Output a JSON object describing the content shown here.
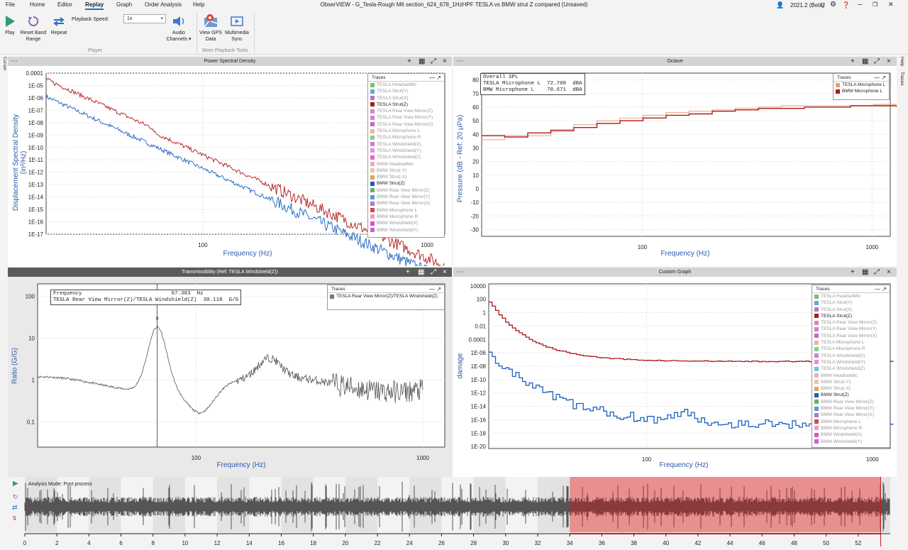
{
  "menu": [
    "File",
    "Home",
    "Editor",
    "Replay",
    "Graph",
    "Order Analysis",
    "Help"
  ],
  "window_title": "ObserVIEW - G_Tesla-Rough M6 section_624_678_1HzHPF TESLA vs BMW strut Z compared (Unsaved)",
  "version": "2021.2 (Beta)",
  "ribbon": {
    "play": "Play",
    "reset_band_range": [
      "Reset Band",
      "Range"
    ],
    "repeat": "Repeat",
    "playback_speed_label": "Playback Speed:",
    "playback_speed": "1x",
    "audio_channels": [
      "Audio",
      "Channels ▾"
    ],
    "view_gps": [
      "View GPS",
      "Data"
    ],
    "multimedia_sync": [
      "Multimedia",
      "Sync"
    ],
    "group_player": "Player",
    "group_more": "More Playback Tools"
  },
  "side_left": "Cursor",
  "side_right": [
    "Help",
    "Traces"
  ],
  "legend_title": "Traces",
  "psd": {
    "title": "Power Spectral Density",
    "ylabel": "Displacement Spectral Density (in²/Hz)",
    "xlabel": "Frequency (Hz)",
    "yticks": [
      "0.0001",
      "1E-05",
      "1E-06",
      "1E-07",
      "1E-08",
      "1E-09",
      "1E-10",
      "1E-11",
      "1E-12",
      "1E-13",
      "1E-14",
      "1E-15",
      "1E-16",
      "1E-17"
    ],
    "xticks": [
      "100",
      "1000"
    ],
    "traces": [
      {
        "name": "TESLA HeadsetMic",
        "color": "#7bbf6a"
      },
      {
        "name": "TESLA Strut(Y)",
        "color": "#6aa6d6"
      },
      {
        "name": "TESLA Strut(X)",
        "color": "#b07ac6"
      },
      {
        "name": "TESLA Strut(Z)",
        "color": "#b01818",
        "on": true
      },
      {
        "name": "TESLA Rear View Mirror(Z)",
        "color": "#d98ab0"
      },
      {
        "name": "TESLA Rear View Mirror(Y)",
        "color": "#e07ad8"
      },
      {
        "name": "TESLA Rear View Mirror(X)",
        "color": "#c06ac0"
      },
      {
        "name": "TESLA Microphone L",
        "color": "#e8b89a"
      },
      {
        "name": "TESLA Microphone R",
        "color": "#8ad08a"
      },
      {
        "name": "TESLA Windshield(X)",
        "color": "#d47ad4"
      },
      {
        "name": "TESLA Windshield(Y)",
        "color": "#f08ad8"
      },
      {
        "name": "TESLA Windshield(Z)",
        "color": "#e86ab8"
      },
      {
        "name": "BMW HeadsetMic",
        "color": "#f0a8c8"
      },
      {
        "name": "BMW Strut(-Y)",
        "color": "#e8c8a0"
      },
      {
        "name": "BMW Strut(-X)",
        "color": "#d4a860"
      },
      {
        "name": "BMW Strut(Z)",
        "color": "#1a5fc0",
        "on": true
      },
      {
        "name": "BMW Rear View Mirror(Z)",
        "color": "#6ab06a"
      },
      {
        "name": "BMW Rear View Mirror(Y)",
        "color": "#5a9ad0"
      },
      {
        "name": "BMW Rear View Mirror(X)",
        "color": "#b07ac0"
      },
      {
        "name": "BMW Microphone L",
        "color": "#d04a4a"
      },
      {
        "name": "BMW Microphone R",
        "color": "#e8a0c0"
      },
      {
        "name": "BMW Windshield(X)",
        "color": "#e050c8"
      },
      {
        "name": "BMW Windshield(Y)",
        "color": "#d060d0"
      }
    ]
  },
  "octave": {
    "title": "Octave",
    "ylabel": "Pressure (dB - Ref: 20 μPa)",
    "xlabel": "Frequency (Hz)",
    "yticks": [
      "80",
      "70",
      "60",
      "50",
      "40",
      "30",
      "20",
      "10",
      "0",
      "-10",
      "-20",
      "-30"
    ],
    "xticks": [
      "100",
      "1000"
    ],
    "spl_title": "Overall SPL",
    "spl": [
      {
        "name": "TESLA Microphone L",
        "value": "72.708",
        "unit": "dBA"
      },
      {
        "name": "BMW Microphone L",
        "value": "70.671",
        "unit": "dBA"
      }
    ],
    "traces": [
      {
        "name": "TESLA Microphone L",
        "color": "#e8a07a"
      },
      {
        "name": "BMW Microphone L",
        "color": "#b01818"
      }
    ]
  },
  "trans": {
    "title": "Transmissibility (Ref: TESLA Windshield(Z))",
    "ylabel": "Ratio (G/G)",
    "xlabel": "Frequency (Hz)",
    "yticks": [
      "100",
      "10",
      "1",
      "0.1"
    ],
    "xticks": [
      "100",
      "1000"
    ],
    "cursor_label": "Frequency",
    "cursor_value": "67.383",
    "cursor_unit": "Hz",
    "trace_label": "TESLA Rear View Mirror(Z)/TESLA Windshield(Z)",
    "trace_value": "30.118",
    "trace_unit": "G/G",
    "traces": [
      {
        "name": "TESLA Rear View Mirror(Z)/TESLA Windshield(Z)",
        "color": "#777777"
      }
    ]
  },
  "custom": {
    "title": "Custom Graph",
    "ylabel": "damage",
    "xlabel": "Frequency (Hz)",
    "yticks": [
      "10000",
      "100",
      "1",
      "0.01",
      "0.0001",
      "1E-06",
      "1E-08",
      "1E-10",
      "1E-12",
      "1E-14",
      "1E-16",
      "1E-18",
      "1E-20"
    ],
    "xticks": [
      "100",
      "1000"
    ],
    "traces": [
      {
        "name": "TESLA HeadsetMic",
        "color": "#7bbf6a"
      },
      {
        "name": "TESLA Strut(Y)",
        "color": "#6aa6d6"
      },
      {
        "name": "TESLA Strut(X)",
        "color": "#b07ac6"
      },
      {
        "name": "TESLA Strut(Z)",
        "color": "#b01818",
        "on": true
      },
      {
        "name": "TESLA Rear View Mirror(Z)",
        "color": "#d98ab0"
      },
      {
        "name": "TESLA Rear View Mirror(Y)",
        "color": "#e07ad8"
      },
      {
        "name": "TESLA Rear View Mirror(X)",
        "color": "#c06ac0"
      },
      {
        "name": "TESLA Microphone L",
        "color": "#e8b89a"
      },
      {
        "name": "TESLA Microphone R",
        "color": "#8ad08a"
      },
      {
        "name": "TESLA Windshield(X)",
        "color": "#d47ad4"
      },
      {
        "name": "TESLA Windshield(Y)",
        "color": "#f08ad8"
      },
      {
        "name": "TESLA Windshield(Z)",
        "color": "#6ac8d0"
      },
      {
        "name": "BMW HeadsetMic",
        "color": "#f0a8c8"
      },
      {
        "name": "BMW Strut(-Y)",
        "color": "#e8c8a0"
      },
      {
        "name": "BMW Strut(-X)",
        "color": "#d4a860"
      },
      {
        "name": "BMW Strut(Z)",
        "color": "#1a5fc0",
        "on": true
      },
      {
        "name": "BMW Rear View Mirror(Z)",
        "color": "#6ab06a"
      },
      {
        "name": "BMW Rear View Mirror(Y)",
        "color": "#5a9ad0"
      },
      {
        "name": "BMW Rear View Mirror(X)",
        "color": "#b07ac0"
      },
      {
        "name": "BMW Microphone L",
        "color": "#d04a4a"
      },
      {
        "name": "BMW Microphone R",
        "color": "#e8a0c0"
      },
      {
        "name": "BMW Windshield(X)",
        "color": "#e050c8"
      },
      {
        "name": "BMW Windshield(Y)",
        "color": "#d060d0"
      }
    ]
  },
  "timeline": {
    "mode": "Analysis Mode: Post process",
    "ticks": [
      "0",
      "2",
      "4",
      "6",
      "8",
      "10",
      "12",
      "14",
      "16",
      "18",
      "20",
      "22",
      "24",
      "26",
      "28",
      "30",
      "32",
      "34",
      "36",
      "38",
      "40",
      "42",
      "44",
      "46",
      "48",
      "50",
      "52"
    ],
    "selection": [
      34,
      53.4
    ]
  }
}
